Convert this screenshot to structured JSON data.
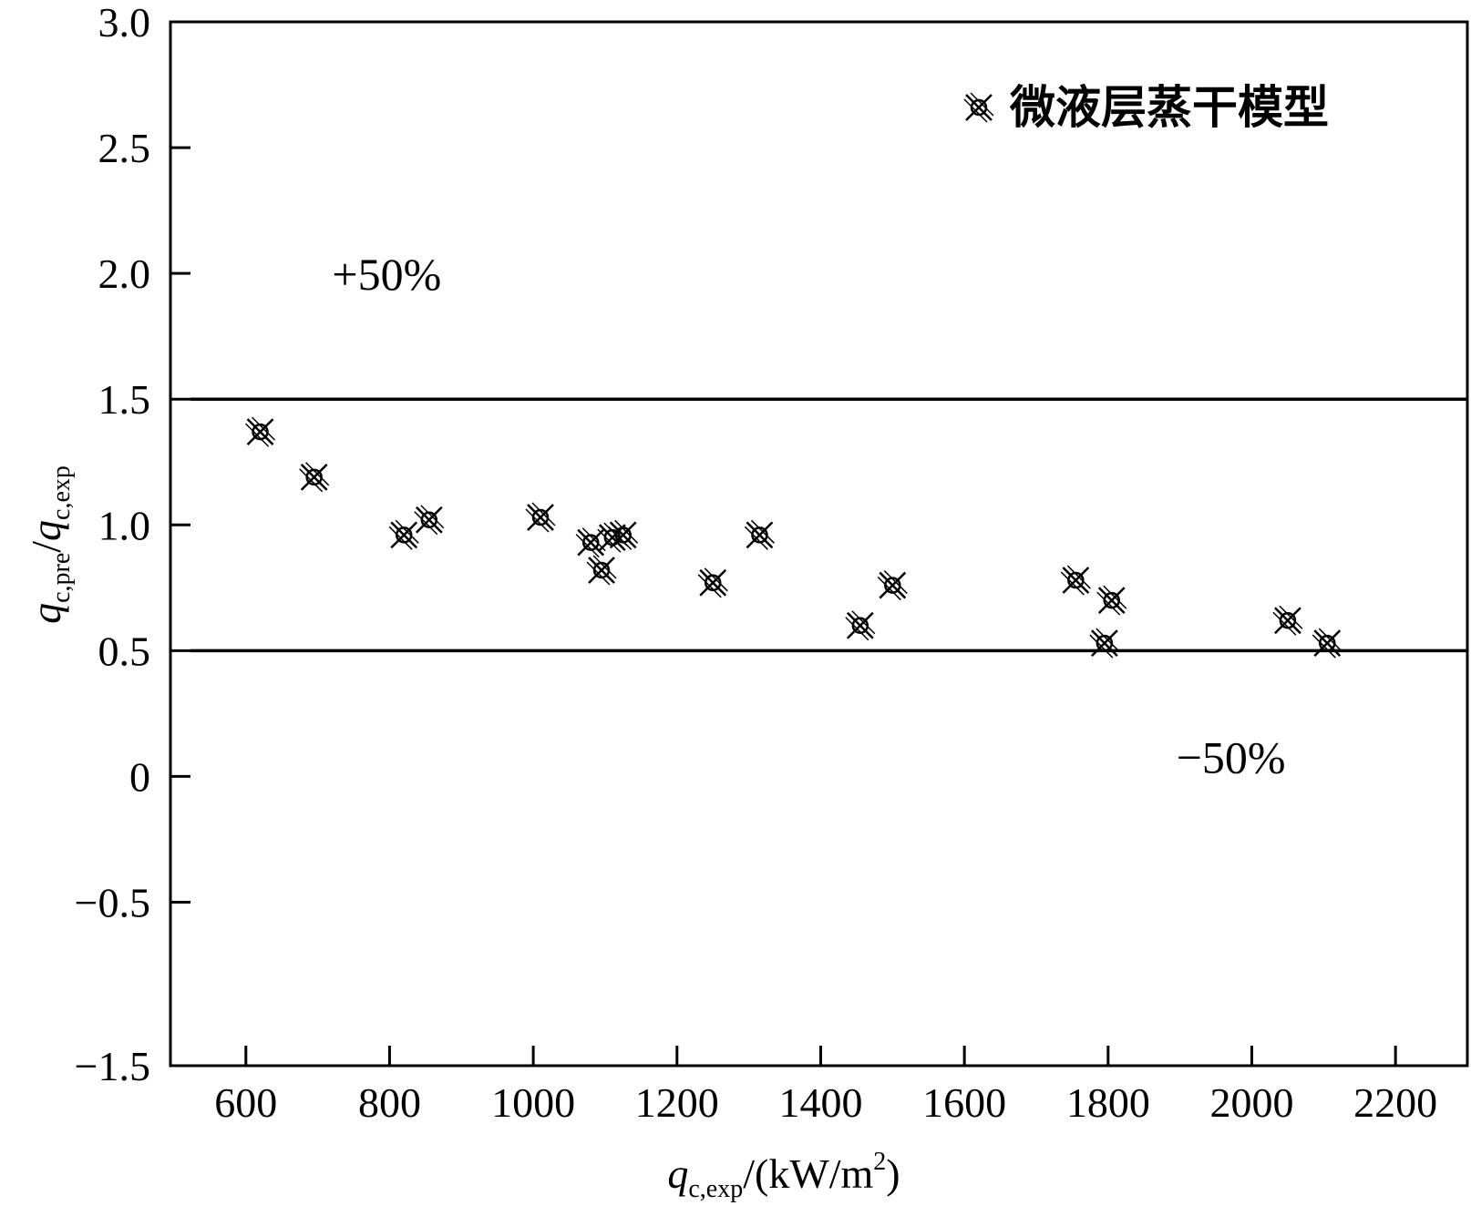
{
  "chart_data": {
    "type": "scatter",
    "x_ticks": [
      "600",
      "800",
      "1000",
      "1200",
      "1400",
      "1600",
      "1800",
      "2000",
      "2200"
    ],
    "y_ticks": [
      "3.0",
      "2.5",
      "2.0",
      "1.5",
      "1.0",
      "0.5",
      "0",
      "−0.5",
      "−1.5"
    ],
    "x_tick_values": [
      600,
      800,
      1000,
      1200,
      1400,
      1600,
      1800,
      2000,
      2200
    ],
    "y_tick_values": [
      3.0,
      2.5,
      2.0,
      1.5,
      1.0,
      0.5,
      0,
      -0.5,
      -1.5
    ],
    "xlim": [
      495,
      2300
    ],
    "ylim": [
      -1.5,
      3.0
    ],
    "ylabel": {
      "main": "q",
      "sub1": "c,pre",
      "sep": "/",
      "main2": "q",
      "sub2": "c,exp"
    },
    "xlabel": {
      "main": "q",
      "sub": "c,exp",
      "unit": "/(kW/m",
      "sup": "2",
      "close": ")"
    },
    "reference_lines": [
      {
        "y": 1.5,
        "label": "+50%",
        "label_x": 720,
        "label_y": 2.0
      },
      {
        "y": 0.5,
        "label": "−50%",
        "label_x": 1895,
        "label_y": 0.08
      }
    ],
    "series": [
      {
        "name": "微液层蒸干模型",
        "marker": "circled-x",
        "points": [
          [
            620,
            1.37
          ],
          [
            695,
            1.19
          ],
          [
            820,
            0.96
          ],
          [
            855,
            1.02
          ],
          [
            1010,
            1.03
          ],
          [
            1080,
            0.93
          ],
          [
            1095,
            0.82
          ],
          [
            1110,
            0.95
          ],
          [
            1125,
            0.96
          ],
          [
            1250,
            0.77
          ],
          [
            1315,
            0.96
          ],
          [
            1455,
            0.6
          ],
          [
            1500,
            0.76
          ],
          [
            1755,
            0.78
          ],
          [
            1795,
            0.53
          ],
          [
            1805,
            0.7
          ],
          [
            2050,
            0.62
          ],
          [
            2105,
            0.53
          ]
        ]
      }
    ],
    "legend": "top-right",
    "grid": false
  }
}
